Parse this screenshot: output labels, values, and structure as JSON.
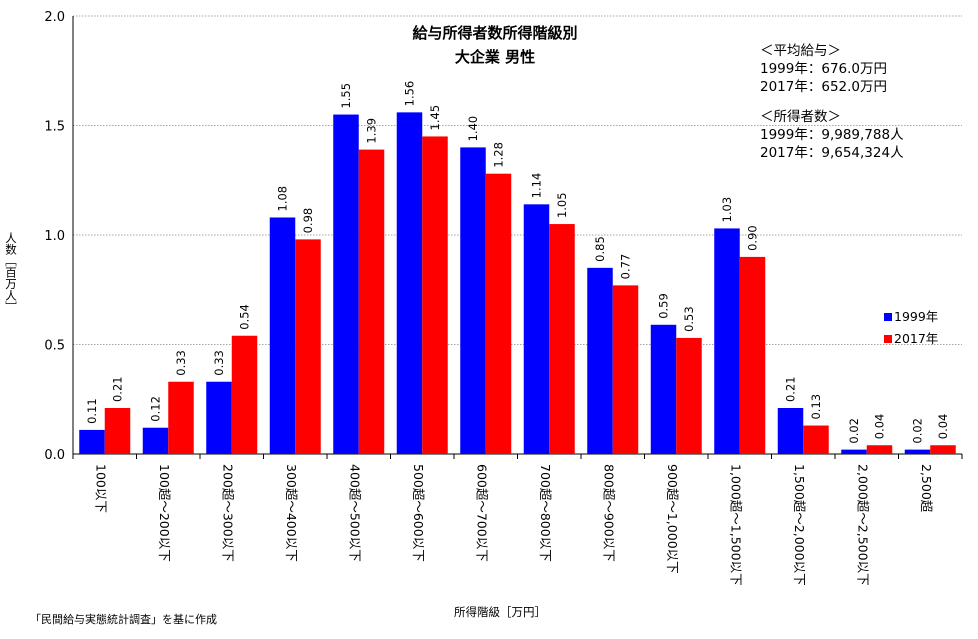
{
  "chart_data": {
    "type": "bar",
    "title": "給与所得者数所得階級別",
    "subtitle": "大企業 男性",
    "xlabel": "所得階級［万円］",
    "ylabel": "人数［百万人］",
    "ylim": [
      0,
      2.0
    ],
    "yticks": [
      "0.0",
      "0.5",
      "1.0",
      "1.5",
      "2.0"
    ],
    "grid": true,
    "legend_position": "right",
    "categories": [
      "100以下",
      "100超～200以下",
      "200超～300以下",
      "300超～400以下",
      "400超～500以下",
      "500超～600以下",
      "600超～700以下",
      "700超～800以下",
      "800超～900以下",
      "900超～1,000以下",
      "1,000超～1,500以下",
      "1,500超～2,000以下",
      "2,000超～2,500以下",
      "2,500超"
    ],
    "series": [
      {
        "name": "1999年",
        "color": "#0000ff",
        "values": [
          0.11,
          0.12,
          0.33,
          1.08,
          1.55,
          1.56,
          1.4,
          1.14,
          0.85,
          0.59,
          1.03,
          0.21,
          0.02,
          0.02
        ],
        "labels": [
          "0.11",
          "0.12",
          "0.33",
          "1.08",
          "1.55",
          "1.56",
          "1.40",
          "1.14",
          "0.85",
          "0.59",
          "1.03",
          "0.21",
          "0.02",
          "0.02"
        ]
      },
      {
        "name": "2017年",
        "color": "#ff0000",
        "values": [
          0.21,
          0.33,
          0.54,
          0.98,
          1.39,
          1.45,
          1.28,
          1.05,
          0.77,
          0.53,
          0.9,
          0.13,
          0.04,
          0.04
        ],
        "labels": [
          "0.21",
          "0.33",
          "0.54",
          "0.98",
          "1.39",
          "1.45",
          "1.28",
          "1.05",
          "0.77",
          "0.53",
          "0.90",
          "0.13",
          "0.04",
          "0.04"
        ]
      }
    ]
  },
  "notes": {
    "avg_header": "＜平均給与＞",
    "avg_1999": "1999年：676.0万円",
    "avg_2017": "2017年：652.0万円",
    "count_header": "＜所得者数＞",
    "count_1999": "1999年：9,989,788人",
    "count_2017": "2017年：9,654,324人"
  },
  "source": "「民間給与実態統計調査」を基に作成"
}
